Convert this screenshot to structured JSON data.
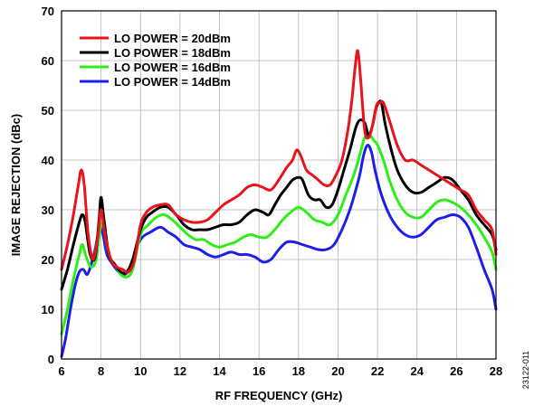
{
  "figure_id": "23122-011",
  "chart_data": {
    "type": "line",
    "title": "",
    "xlabel": "RF FREQUENCY (GHz)",
    "ylabel": "IMAGE REJECTION (dBc)",
    "xlim": [
      6,
      28
    ],
    "ylim": [
      0,
      70
    ],
    "xticks": [
      6,
      8,
      10,
      12,
      14,
      16,
      18,
      20,
      22,
      24,
      26,
      28
    ],
    "yticks": [
      0,
      10,
      20,
      30,
      40,
      50,
      60,
      70
    ],
    "grid": true,
    "legend_position": "top-left",
    "series": [
      {
        "name": "LO POWER = 20dBm",
        "color": "#e8131b",
        "x": [
          6,
          6.3,
          6.6,
          6.85,
          7,
          7.15,
          7.35,
          7.6,
          7.85,
          8,
          8.2,
          8.5,
          8.8,
          9.1,
          9.4,
          9.7,
          10,
          10.3,
          10.6,
          11,
          11.4,
          11.8,
          12.2,
          12.6,
          13,
          13.4,
          13.8,
          14.2,
          14.6,
          15,
          15.4,
          15.8,
          16.2,
          16.6,
          17,
          17.4,
          17.7,
          17.9,
          18.1,
          18.4,
          18.7,
          19.0,
          19.3,
          19.6,
          19.9,
          20.2,
          20.5,
          20.7,
          20.85,
          21,
          21.15,
          21.35,
          21.55,
          21.75,
          21.95,
          22.1,
          22.3,
          22.6,
          23,
          23.4,
          23.8,
          24.2,
          24.6,
          25,
          25.4,
          25.8,
          26.2,
          26.6,
          27,
          27.4,
          27.8,
          28
        ],
        "y": [
          18,
          23,
          29,
          35,
          38,
          35,
          25,
          20,
          25,
          30,
          25,
          20,
          18.5,
          18,
          17.5,
          20,
          27,
          29.5,
          30.5,
          31,
          31,
          29,
          28,
          27.5,
          27.5,
          28,
          29.5,
          31,
          32,
          33,
          34.5,
          35,
          34.5,
          34,
          36,
          38.5,
          40,
          42,
          41,
          38,
          37,
          36,
          35,
          35,
          37,
          40,
          46,
          52,
          58,
          62,
          56,
          46,
          44.5,
          47,
          51,
          51.5,
          51.5,
          48,
          43,
          40,
          40,
          39,
          38,
          37,
          36,
          35,
          34,
          33,
          30,
          28,
          26,
          21
        ]
      },
      {
        "name": "LO POWER = 18dBm",
        "color": "#000000",
        "x": [
          6,
          6.3,
          6.6,
          6.9,
          7.05,
          7.2,
          7.45,
          7.7,
          7.9,
          8,
          8.15,
          8.4,
          8.7,
          9,
          9.3,
          9.6,
          10,
          10.3,
          10.6,
          11,
          11.4,
          11.8,
          12.2,
          12.6,
          13,
          13.4,
          13.8,
          14.2,
          14.6,
          15,
          15.4,
          15.8,
          16.2,
          16.5,
          16.8,
          17.1,
          17.4,
          17.7,
          18,
          18.2,
          18.5,
          18.8,
          19.1,
          19.4,
          19.7,
          20,
          20.3,
          20.6,
          20.9,
          21.1,
          21.35,
          21.55,
          21.75,
          21.9,
          22.05,
          22.2,
          22.4,
          22.7,
          23,
          23.4,
          23.8,
          24.2,
          24.6,
          25,
          25.4,
          25.8,
          26.2,
          26.6,
          27,
          27.4,
          27.8,
          28
        ],
        "y": [
          14,
          18,
          23,
          27.5,
          29,
          27.5,
          21,
          20.5,
          28,
          32.5,
          28,
          21,
          19,
          17.5,
          17.5,
          20,
          26,
          28.5,
          29.5,
          30.5,
          30.5,
          29,
          27,
          26,
          26,
          26,
          26.5,
          27,
          27,
          27.5,
          29,
          30,
          29.5,
          29,
          31,
          33,
          34.5,
          36,
          36.5,
          36,
          33,
          32,
          32,
          30.5,
          31,
          34,
          38,
          42,
          46.5,
          48,
          47.5,
          45,
          47,
          50,
          51.5,
          51.5,
          47,
          42,
          38,
          35,
          33.5,
          33.5,
          34.5,
          35.5,
          36.5,
          36,
          34,
          32,
          29,
          27,
          25,
          22
        ]
      },
      {
        "name": "LO POWER = 16dBm",
        "color": "#2eee1a",
        "x": [
          6,
          6.3,
          6.6,
          6.9,
          7.05,
          7.25,
          7.5,
          7.75,
          7.95,
          8.1,
          8.4,
          8.7,
          9,
          9.3,
          9.6,
          10,
          10.4,
          10.8,
          11.2,
          11.6,
          12,
          12.4,
          12.8,
          13.2,
          13.6,
          14,
          14.4,
          14.8,
          15.2,
          15.6,
          16,
          16.4,
          16.8,
          17.2,
          17.6,
          18,
          18.4,
          18.8,
          19.2,
          19.6,
          20,
          20.4,
          20.8,
          21.1,
          21.35,
          21.6,
          21.8,
          22,
          22.3,
          22.6,
          23,
          23.4,
          23.8,
          24.2,
          24.6,
          25,
          25.4,
          25.8,
          26.2,
          26.6,
          27,
          27.4,
          27.8,
          28
        ],
        "y": [
          5,
          10,
          16,
          21,
          23,
          20.5,
          18.5,
          20,
          26,
          27,
          21,
          19,
          17,
          16.5,
          18,
          25,
          27,
          28.5,
          29,
          28,
          26.5,
          25,
          24,
          24,
          23,
          22.5,
          23,
          23.5,
          24.5,
          25,
          24.5,
          24.5,
          26,
          28,
          29.5,
          30.5,
          29.5,
          28,
          27.5,
          27,
          29,
          33,
          37,
          41,
          44.5,
          45,
          44,
          43,
          40,
          36,
          32,
          29.5,
          28.5,
          28.5,
          30,
          31.5,
          32,
          31.5,
          30.5,
          29,
          27,
          24.5,
          21.5,
          18
        ]
      },
      {
        "name": "LO POWER = 14dBm",
        "color": "#1e1ee8",
        "x": [
          6,
          6.2,
          6.45,
          6.7,
          6.9,
          7.1,
          7.3,
          7.5,
          7.7,
          7.95,
          8.1,
          8.3,
          8.6,
          8.9,
          9.2,
          9.5,
          9.8,
          10.1,
          10.5,
          11,
          11.4,
          11.8,
          12.2,
          12.6,
          13,
          13.4,
          13.8,
          14.2,
          14.6,
          15,
          15.4,
          15.8,
          16.2,
          16.6,
          17,
          17.4,
          17.8,
          18.2,
          18.6,
          19,
          19.4,
          19.8,
          20.2,
          20.6,
          20.9,
          21.1,
          21.3,
          21.5,
          21.7,
          21.9,
          22.2,
          22.6,
          23,
          23.4,
          23.8,
          24.2,
          24.6,
          25,
          25.4,
          25.8,
          26.2,
          26.6,
          27,
          27.4,
          27.8,
          28
        ],
        "y": [
          0.5,
          4,
          10,
          15,
          17.5,
          18,
          17,
          19,
          22,
          27,
          25,
          21,
          19,
          17.5,
          17,
          18.5,
          22.5,
          24.5,
          25.5,
          26.5,
          25.5,
          24.5,
          23,
          22.5,
          22,
          21,
          20.5,
          21,
          21.5,
          21,
          21,
          20.5,
          19.5,
          20,
          22,
          23.5,
          23.5,
          23,
          22.5,
          22,
          22,
          23,
          26,
          30,
          34,
          37,
          41,
          43,
          41.5,
          37.5,
          33,
          29,
          26.5,
          25,
          24.5,
          25,
          26.5,
          28,
          28.5,
          29,
          28.5,
          26.5,
          22.5,
          18,
          14,
          10
        ]
      }
    ]
  }
}
